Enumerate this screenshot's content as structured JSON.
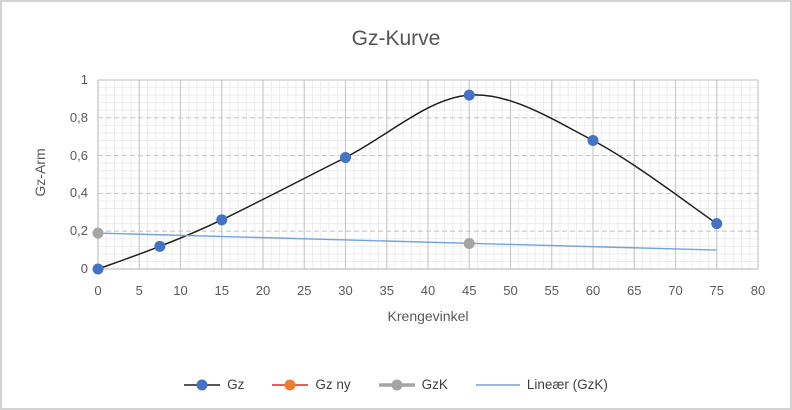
{
  "chart_data": {
    "type": "line",
    "title": "Gz-Kurve",
    "xlabel": "Krengevinkel",
    "ylabel": "Gz-Arm",
    "xlim": [
      0,
      80
    ],
    "ylim": [
      0,
      1
    ],
    "x_ticks": [
      0,
      5,
      10,
      15,
      20,
      25,
      30,
      35,
      40,
      45,
      50,
      55,
      60,
      65,
      70,
      75,
      80
    ],
    "y_ticks": [
      {
        "v": 0,
        "label": "0"
      },
      {
        "v": 0.2,
        "label": "0,2"
      },
      {
        "v": 0.4,
        "label": "0,4"
      },
      {
        "v": 0.6,
        "label": "0,6"
      },
      {
        "v": 0.8,
        "label": "0,8"
      },
      {
        "v": 1,
        "label": "1"
      }
    ],
    "x_minor_step": 1,
    "y_minor_step": 0.04,
    "grid": {
      "minor_color": "#ededed",
      "major_color": "#c9c9c9",
      "axis_color": "#bfbfbf",
      "minor_on": true,
      "major_on": true
    },
    "text_color": "#595959",
    "legend_position": "bottom",
    "series": [
      {
        "name": "Gz",
        "line_color": "#1f1f1f",
        "line_width": 1.5,
        "line_style": "smooth",
        "marker": "circle",
        "marker_color": "#4472c4",
        "marker_radius": 5.5,
        "points": [
          [
            0,
            0
          ],
          [
            7.5,
            0.12
          ],
          [
            15,
            0.26
          ],
          [
            30,
            0.59
          ],
          [
            45,
            0.92
          ],
          [
            60,
            0.68
          ],
          [
            75,
            0.24
          ]
        ]
      },
      {
        "name": "Gz ny",
        "line_color": "#dc2a1e",
        "line_width": 1.5,
        "line_style": "straight",
        "marker": "circle",
        "marker_color": "#ed7d31",
        "marker_radius": 5.5,
        "points": []
      },
      {
        "name": "GzK",
        "line_color": "#a5a5a5",
        "line_width": 3.5,
        "line_style": "none",
        "marker": "circle",
        "marker_color": "#a5a5a5",
        "marker_radius": 5.5,
        "points": [
          [
            0,
            0.19
          ],
          [
            45,
            0.135
          ]
        ]
      },
      {
        "name": "Lineær (GzK)",
        "line_color": "#74a3dc",
        "line_width": 1.4,
        "line_style": "straight",
        "marker": "none",
        "marker_color": null,
        "marker_radius": 0,
        "points": [
          [
            0,
            0.19
          ],
          [
            75,
            0.1
          ]
        ]
      }
    ]
  }
}
